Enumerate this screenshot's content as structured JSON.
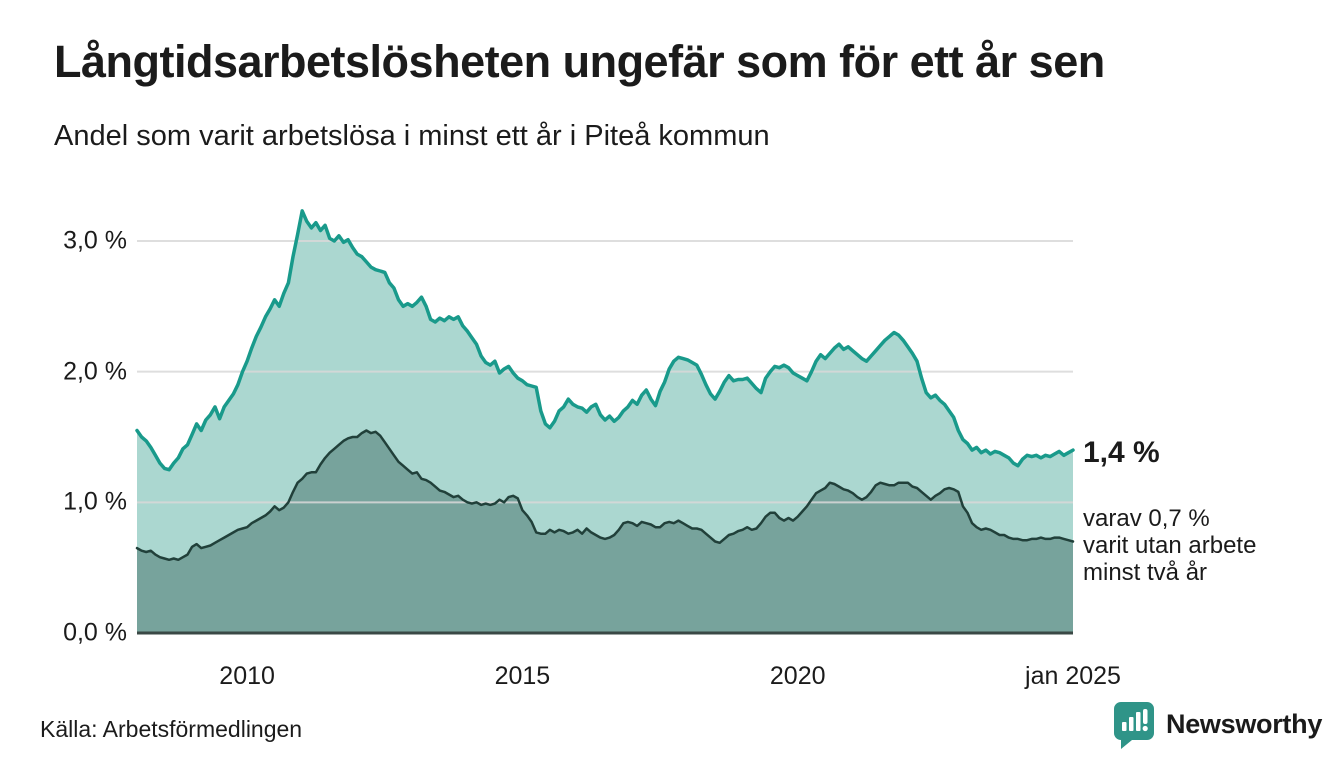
{
  "header": {
    "title": "Långtidsarbetslösheten ungefär som för ett år sen",
    "subtitle": "Andel som varit arbetslösa i minst ett år i Piteå kommun"
  },
  "annotation": {
    "value_label": "1,4 %",
    "detail_lines": [
      "varav 0,7 %",
      "varit utan arbete",
      "minst två år"
    ]
  },
  "footer": {
    "source": "Källa: Arbetsförmedlingen",
    "brand_name": "Newsworthy"
  },
  "colors": {
    "text": "#1b1b1b",
    "line_1yr": "#199a8b",
    "fill_1yr": "#abd7d0",
    "line_2yr": "#21403a",
    "fill_2yr": "#77a39c",
    "gridline": "#d8d8d8",
    "axis_baseline": "#3a4845",
    "brand_teal": "#2f9488"
  },
  "chart_data": {
    "type": "area",
    "title": "Långtidsarbetslösheten ungefär som för ett år sen",
    "subtitle": "Andel som varit arbetslösa i minst ett år i Piteå kommun",
    "x_start": 2008.0,
    "x_step": 0.0833333,
    "x_end": 2025.0,
    "xlim": [
      2008.0,
      2025.0
    ],
    "ylim": [
      0.0,
      3.45
    ],
    "grid": "horizontal",
    "legend_position": "none",
    "unit": "%",
    "x_ticks": [
      {
        "x": 2010.0,
        "label": "2010"
      },
      {
        "x": 2015.0,
        "label": "2015"
      },
      {
        "x": 2020.0,
        "label": "2020"
      },
      {
        "x": 2025.0,
        "label": "jan 2025"
      }
    ],
    "y_ticks": [
      {
        "v": 0.0,
        "label": "0,0 %"
      },
      {
        "v": 1.0,
        "label": "1,0 %"
      },
      {
        "v": 2.0,
        "label": "2,0 %"
      },
      {
        "v": 3.0,
        "label": "3,0 %"
      }
    ],
    "series": [
      {
        "name": "minst ett år",
        "last_value_label": "1,4 %",
        "stroke": "#199a8b",
        "fill": "#abd7d0",
        "stroke_width": 3.5,
        "values": [
          1.55,
          1.5,
          1.47,
          1.42,
          1.36,
          1.3,
          1.26,
          1.25,
          1.3,
          1.34,
          1.41,
          1.44,
          1.52,
          1.6,
          1.55,
          1.63,
          1.67,
          1.73,
          1.64,
          1.73,
          1.78,
          1.83,
          1.9,
          2.0,
          2.08,
          2.18,
          2.27,
          2.34,
          2.42,
          2.48,
          2.55,
          2.5,
          2.6,
          2.68,
          2.88,
          3.05,
          3.23,
          3.15,
          3.1,
          3.14,
          3.08,
          3.12,
          3.02,
          3.0,
          3.04,
          2.99,
          3.01,
          2.95,
          2.9,
          2.88,
          2.84,
          2.8,
          2.78,
          2.77,
          2.76,
          2.68,
          2.64,
          2.55,
          2.5,
          2.52,
          2.5,
          2.53,
          2.57,
          2.5,
          2.4,
          2.38,
          2.41,
          2.39,
          2.42,
          2.4,
          2.42,
          2.35,
          2.31,
          2.26,
          2.21,
          2.12,
          2.07,
          2.05,
          2.08,
          1.99,
          2.02,
          2.04,
          1.99,
          1.95,
          1.93,
          1.9,
          1.89,
          1.88,
          1.7,
          1.6,
          1.57,
          1.62,
          1.7,
          1.73,
          1.79,
          1.75,
          1.73,
          1.72,
          1.69,
          1.73,
          1.75,
          1.67,
          1.63,
          1.66,
          1.62,
          1.65,
          1.7,
          1.73,
          1.78,
          1.75,
          1.82,
          1.86,
          1.79,
          1.74,
          1.85,
          1.92,
          2.02,
          2.08,
          2.11,
          2.1,
          2.09,
          2.07,
          2.05,
          1.98,
          1.9,
          1.83,
          1.79,
          1.85,
          1.92,
          1.97,
          1.93,
          1.94,
          1.94,
          1.95,
          1.91,
          1.87,
          1.84,
          1.95,
          2.0,
          2.04,
          2.03,
          2.05,
          2.03,
          1.99,
          1.97,
          1.95,
          1.93,
          2.0,
          2.08,
          2.13,
          2.1,
          2.14,
          2.18,
          2.21,
          2.17,
          2.19,
          2.16,
          2.13,
          2.1,
          2.08,
          2.12,
          2.16,
          2.2,
          2.24,
          2.27,
          2.3,
          2.28,
          2.24,
          2.19,
          2.14,
          2.08,
          1.95,
          1.84,
          1.8,
          1.82,
          1.78,
          1.75,
          1.7,
          1.65,
          1.55,
          1.48,
          1.45,
          1.4,
          1.42,
          1.38,
          1.4,
          1.37,
          1.39,
          1.38,
          1.36,
          1.34,
          1.3,
          1.28,
          1.33,
          1.36,
          1.35,
          1.36,
          1.34,
          1.36,
          1.35,
          1.37,
          1.39,
          1.36,
          1.38,
          1.4
        ]
      },
      {
        "name": "minst två år",
        "last_value_label": "0,7 %",
        "stroke": "#21403a",
        "fill": "#77a39c",
        "stroke_width": 2.5,
        "values": [
          0.65,
          0.63,
          0.62,
          0.63,
          0.6,
          0.58,
          0.57,
          0.56,
          0.57,
          0.56,
          0.58,
          0.6,
          0.66,
          0.68,
          0.65,
          0.66,
          0.67,
          0.69,
          0.71,
          0.73,
          0.75,
          0.77,
          0.79,
          0.8,
          0.81,
          0.84,
          0.86,
          0.88,
          0.9,
          0.93,
          0.97,
          0.94,
          0.96,
          1.0,
          1.08,
          1.15,
          1.18,
          1.22,
          1.23,
          1.23,
          1.29,
          1.34,
          1.38,
          1.41,
          1.44,
          1.47,
          1.49,
          1.5,
          1.5,
          1.53,
          1.55,
          1.53,
          1.54,
          1.51,
          1.46,
          1.41,
          1.36,
          1.31,
          1.28,
          1.25,
          1.22,
          1.23,
          1.18,
          1.17,
          1.15,
          1.12,
          1.09,
          1.08,
          1.06,
          1.04,
          1.05,
          1.02,
          1.0,
          0.99,
          1.0,
          0.98,
          0.99,
          0.98,
          0.99,
          1.02,
          1.0,
          1.04,
          1.05,
          1.03,
          0.94,
          0.9,
          0.85,
          0.77,
          0.76,
          0.76,
          0.79,
          0.77,
          0.79,
          0.78,
          0.76,
          0.77,
          0.79,
          0.76,
          0.8,
          0.77,
          0.75,
          0.73,
          0.72,
          0.73,
          0.75,
          0.79,
          0.84,
          0.85,
          0.84,
          0.82,
          0.85,
          0.84,
          0.83,
          0.81,
          0.81,
          0.84,
          0.85,
          0.84,
          0.86,
          0.84,
          0.82,
          0.8,
          0.8,
          0.79,
          0.76,
          0.73,
          0.7,
          0.69,
          0.72,
          0.75,
          0.76,
          0.78,
          0.79,
          0.81,
          0.79,
          0.8,
          0.84,
          0.89,
          0.92,
          0.92,
          0.88,
          0.86,
          0.88,
          0.86,
          0.89,
          0.93,
          0.97,
          1.02,
          1.07,
          1.09,
          1.11,
          1.15,
          1.14,
          1.12,
          1.1,
          1.09,
          1.07,
          1.04,
          1.02,
          1.04,
          1.08,
          1.13,
          1.15,
          1.14,
          1.13,
          1.13,
          1.15,
          1.15,
          1.15,
          1.12,
          1.11,
          1.08,
          1.05,
          1.02,
          1.05,
          1.07,
          1.1,
          1.11,
          1.1,
          1.08,
          0.97,
          0.92,
          0.84,
          0.81,
          0.79,
          0.8,
          0.79,
          0.77,
          0.75,
          0.75,
          0.73,
          0.72,
          0.72,
          0.71,
          0.71,
          0.72,
          0.72,
          0.73,
          0.72,
          0.72,
          0.73,
          0.73,
          0.72,
          0.71,
          0.7
        ]
      }
    ]
  }
}
